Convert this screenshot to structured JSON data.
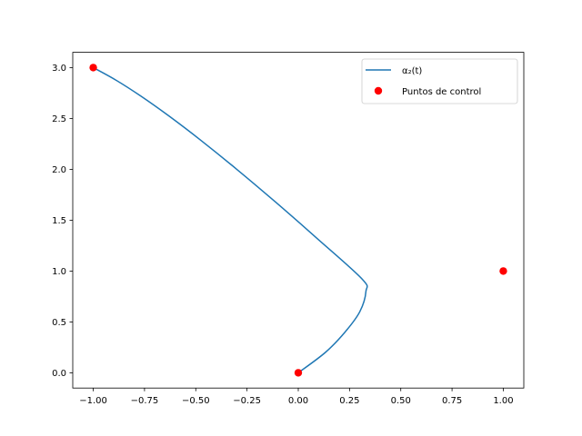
{
  "chart_data": {
    "type": "line",
    "title": "",
    "xlabel": "",
    "ylabel": "",
    "xlim": [
      -1.1,
      1.1
    ],
    "ylim": [
      -0.15,
      3.15
    ],
    "x_ticks": [
      -1.0,
      -0.75,
      -0.5,
      -0.25,
      0.0,
      0.25,
      0.5,
      0.75,
      1.0
    ],
    "x_tick_labels": [
      "−1.00",
      "−0.75",
      "−0.50",
      "−0.25",
      "0.00",
      "0.25",
      "0.50",
      "0.75",
      "1.00"
    ],
    "y_ticks": [
      0.0,
      0.5,
      1.0,
      1.5,
      2.0,
      2.5,
      3.0
    ],
    "y_tick_labels": [
      "0.0",
      "0.5",
      "1.0",
      "1.5",
      "2.0",
      "2.5",
      "3.0"
    ],
    "grid": false,
    "legend_position": "top-right",
    "series": [
      {
        "name": "α₂(t)",
        "kind": "line",
        "color": "#1f77b4",
        "points": [
          [
            -1.0,
            3.0
          ],
          [
            -0.892,
            2.88
          ],
          [
            -0.768,
            2.72
          ],
          [
            -0.628,
            2.52
          ],
          [
            -0.472,
            2.28
          ],
          [
            -0.3,
            2.0
          ],
          [
            -0.112,
            1.68
          ],
          [
            0.092,
            1.32
          ],
          [
            0.312,
            0.92
          ],
          [
            0.33,
            0.8
          ],
          [
            0.3,
            0.6
          ],
          [
            0.228,
            0.4
          ],
          [
            0.132,
            0.2
          ],
          [
            0.0,
            0.0
          ]
        ]
      },
      {
        "name": "Puntos de control",
        "kind": "scatter",
        "color": "#ff0000",
        "points": [
          [
            -1.0,
            3.0
          ],
          [
            0.0,
            0.0
          ],
          [
            1.0,
            1.0
          ]
        ]
      }
    ]
  }
}
